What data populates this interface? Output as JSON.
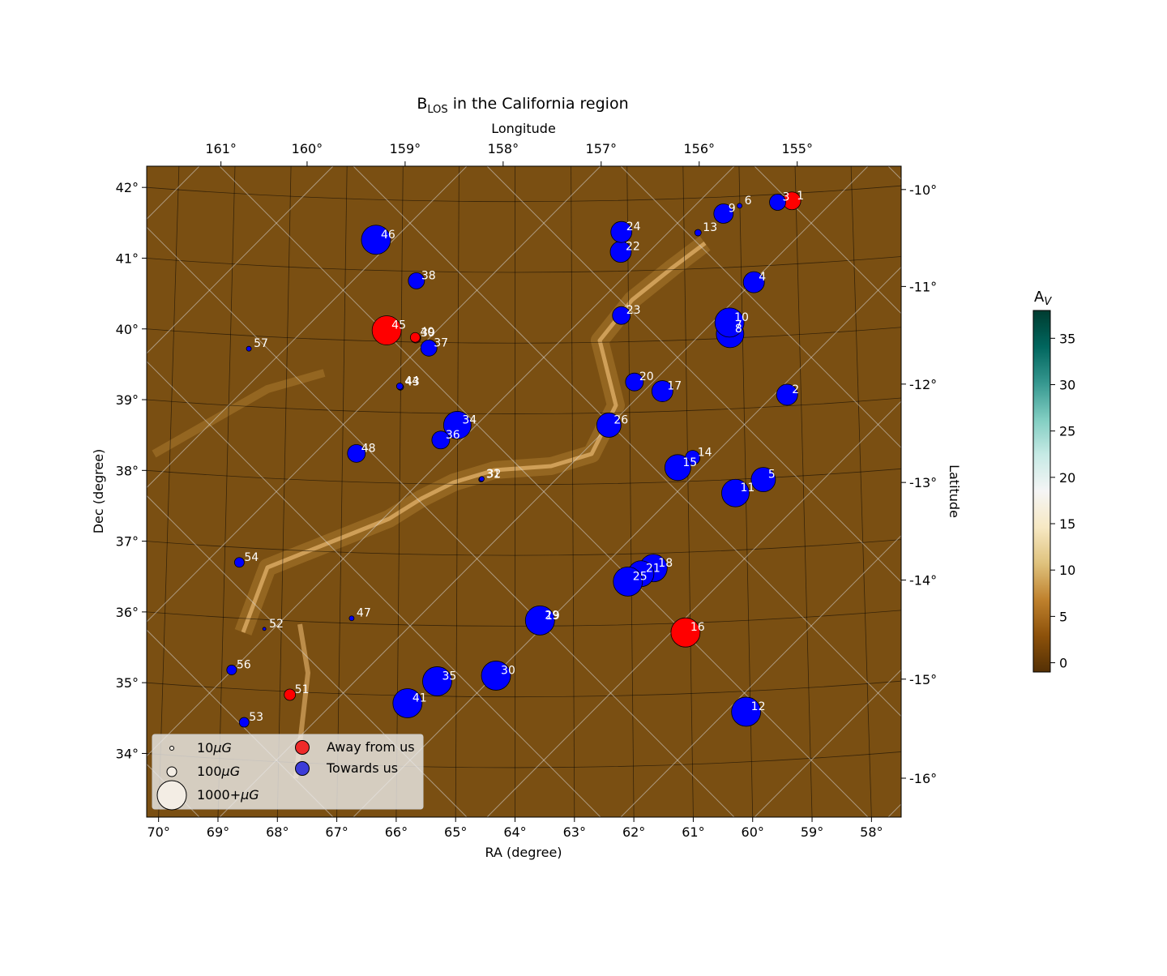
{
  "title": "B",
  "title_sub": "LOS",
  "title_rest": " in the California region",
  "colors": {
    "map_base": "#7a4f12",
    "away": "#ff0000",
    "towards": "#0000ff",
    "colorbar": [
      "#543005",
      "#8c510a",
      "#bf812d",
      "#dfc27d",
      "#f6e8c3",
      "#f5f5f5",
      "#c7eae5",
      "#80cdc1",
      "#35978f",
      "#01665e",
      "#003c30"
    ]
  },
  "chart_data": {
    "type": "scatter",
    "xlabel": "RA (degree)",
    "ylabel": "Dec (degree)",
    "top_axis_label": "Longitude",
    "right_axis_label": "Latitude",
    "xlim": [
      70.2,
      57.5
    ],
    "ylim": [
      33.1,
      42.3
    ],
    "x_ticks": [
      "70°",
      "69°",
      "68°",
      "67°",
      "66°",
      "65°",
      "64°",
      "63°",
      "62°",
      "61°",
      "60°",
      "59°",
      "58°"
    ],
    "x_tick_values": [
      70,
      69,
      68,
      67,
      66,
      65,
      64,
      63,
      62,
      61,
      60,
      59,
      58
    ],
    "y_ticks": [
      "34°",
      "35°",
      "36°",
      "37°",
      "38°",
      "39°",
      "40°",
      "41°",
      "42°"
    ],
    "y_tick_values": [
      34,
      35,
      36,
      37,
      38,
      39,
      40,
      41,
      42
    ],
    "top_ticks": [
      "161°",
      "160°",
      "159°",
      "158°",
      "157°",
      "156°",
      "155°"
    ],
    "top_tick_ra": [
      68.95,
      67.5,
      65.85,
      64.2,
      62.55,
      60.9,
      59.25
    ],
    "right_ticks": [
      "-10°",
      "-11°",
      "-12°",
      "-13°",
      "-14°",
      "-15°",
      "-16°"
    ],
    "right_tick_dec": [
      41.97,
      40.6,
      39.22,
      37.83,
      36.45,
      35.05,
      33.65
    ],
    "colorbar": {
      "label": "A",
      "label_sub": "V",
      "ticks": [
        "0",
        "5",
        "10",
        "15",
        "20",
        "25",
        "30",
        "35"
      ],
      "tick_values": [
        0,
        5,
        10,
        15,
        20,
        25,
        30,
        35
      ],
      "range": [
        -1,
        38
      ]
    },
    "legend": {
      "position": "lower-left",
      "size_entries": [
        {
          "label": "10",
          "unit": "μG"
        },
        {
          "label": "100",
          "unit": "μG"
        },
        {
          "label": "1000+",
          "unit": "μG"
        }
      ],
      "direction_entries": [
        {
          "label": "Away from us",
          "dir": "away"
        },
        {
          "label": "Towards us",
          "dir": "towards"
        }
      ]
    },
    "points": [
      {
        "id": "1",
        "ra": 59.34,
        "dec": 41.81,
        "dir": "away",
        "r": 11
      },
      {
        "id": "2",
        "ra": 59.42,
        "dec": 39.07,
        "dir": "towards",
        "r": 13
      },
      {
        "id": "3",
        "ra": 59.58,
        "dec": 41.79,
        "dir": "towards",
        "r": 10
      },
      {
        "id": "4",
        "ra": 59.98,
        "dec": 40.66,
        "dir": "towards",
        "r": 13
      },
      {
        "id": "5",
        "ra": 59.82,
        "dec": 37.87,
        "dir": "towards",
        "r": 15
      },
      {
        "id": "6",
        "ra": 60.22,
        "dec": 41.74,
        "dir": "towards",
        "r": 3
      },
      {
        "id": "7",
        "ra": 60.38,
        "dec": 39.98,
        "dir": "towards",
        "r": 15
      },
      {
        "id": "8",
        "ra": 60.38,
        "dec": 39.93,
        "dir": "towards",
        "r": 17
      },
      {
        "id": "9",
        "ra": 60.49,
        "dec": 41.63,
        "dir": "towards",
        "r": 12
      },
      {
        "id": "10",
        "ra": 60.39,
        "dec": 40.09,
        "dir": "towards",
        "r": 18
      },
      {
        "id": "11",
        "ra": 60.29,
        "dec": 37.68,
        "dir": "towards",
        "r": 17
      },
      {
        "id": "12",
        "ra": 60.11,
        "dec": 34.59,
        "dir": "towards",
        "r": 18
      },
      {
        "id": "13",
        "ra": 60.92,
        "dec": 41.36,
        "dir": "towards",
        "r": 4
      },
      {
        "id": "14",
        "ra": 61.01,
        "dec": 38.18,
        "dir": "towards",
        "r": 9
      },
      {
        "id": "15",
        "ra": 61.26,
        "dec": 38.04,
        "dir": "towards",
        "r": 16
      },
      {
        "id": "16",
        "ra": 61.13,
        "dec": 35.71,
        "dir": "away",
        "r": 18
      },
      {
        "id": "17",
        "ra": 61.52,
        "dec": 39.12,
        "dir": "towards",
        "r": 13
      },
      {
        "id": "18",
        "ra": 61.67,
        "dec": 36.62,
        "dir": "towards",
        "r": 17
      },
      {
        "id": "19",
        "ra": 63.57,
        "dec": 35.87,
        "dir": "towards",
        "r": 15
      },
      {
        "id": "20",
        "ra": 61.99,
        "dec": 39.25,
        "dir": "towards",
        "r": 11
      },
      {
        "id": "21",
        "ra": 61.88,
        "dec": 36.54,
        "dir": "towards",
        "r": 16
      },
      {
        "id": "22",
        "ra": 62.22,
        "dec": 41.09,
        "dir": "towards",
        "r": 13
      },
      {
        "id": "23",
        "ra": 62.21,
        "dec": 40.19,
        "dir": "towards",
        "r": 11
      },
      {
        "id": "24",
        "ra": 62.21,
        "dec": 41.37,
        "dir": "towards",
        "r": 13
      },
      {
        "id": "25",
        "ra": 62.1,
        "dec": 36.43,
        "dir": "towards",
        "r": 18
      },
      {
        "id": "26",
        "ra": 62.42,
        "dec": 38.64,
        "dir": "towards",
        "r": 15
      },
      {
        "id": "29",
        "ra": 63.58,
        "dec": 35.88,
        "dir": "towards",
        "r": 18
      },
      {
        "id": "30",
        "ra": 64.32,
        "dec": 35.1,
        "dir": "towards",
        "r": 18
      },
      {
        "id": "31",
        "ra": 64.57,
        "dec": 37.87,
        "dir": "towards",
        "r": 3
      },
      {
        "id": "32",
        "ra": 64.56,
        "dec": 37.88,
        "dir": "towards",
        "r": 3
      },
      {
        "id": "34",
        "ra": 64.97,
        "dec": 38.64,
        "dir": "towards",
        "r": 17
      },
      {
        "id": "35",
        "ra": 65.31,
        "dec": 35.02,
        "dir": "towards",
        "r": 18
      },
      {
        "id": "36",
        "ra": 65.25,
        "dec": 38.43,
        "dir": "towards",
        "r": 11
      },
      {
        "id": "37",
        "ra": 65.45,
        "dec": 39.73,
        "dir": "towards",
        "r": 10
      },
      {
        "id": "38",
        "ra": 65.66,
        "dec": 40.68,
        "dir": "towards",
        "r": 10
      },
      {
        "id": "39",
        "ra": 65.67,
        "dec": 39.87,
        "dir": "away",
        "r": 6
      },
      {
        "id": "40",
        "ra": 65.68,
        "dec": 39.88,
        "dir": "away",
        "r": 6
      },
      {
        "id": "41",
        "ra": 65.81,
        "dec": 34.71,
        "dir": "towards",
        "r": 18
      },
      {
        "id": "43",
        "ra": 65.93,
        "dec": 39.18,
        "dir": "towards",
        "r": 4
      },
      {
        "id": "44",
        "ra": 65.94,
        "dec": 39.19,
        "dir": "towards",
        "r": 4
      },
      {
        "id": "45",
        "ra": 66.16,
        "dec": 39.98,
        "dir": "away",
        "r": 18
      },
      {
        "id": "46",
        "ra": 66.34,
        "dec": 41.26,
        "dir": "towards",
        "r": 18
      },
      {
        "id": "47",
        "ra": 66.75,
        "dec": 35.91,
        "dir": "towards",
        "r": 3
      },
      {
        "id": "48",
        "ra": 66.67,
        "dec": 38.24,
        "dir": "towards",
        "r": 11
      },
      {
        "id": "51",
        "ra": 67.79,
        "dec": 34.83,
        "dir": "away",
        "r": 7
      },
      {
        "id": "52",
        "ra": 68.22,
        "dec": 35.76,
        "dir": "towards",
        "r": 2
      },
      {
        "id": "53",
        "ra": 68.56,
        "dec": 34.44,
        "dir": "towards",
        "r": 6
      },
      {
        "id": "54",
        "ra": 68.64,
        "dec": 36.7,
        "dir": "towards",
        "r": 6
      },
      {
        "id": "56",
        "ra": 68.77,
        "dec": 35.18,
        "dir": "towards",
        "r": 6
      },
      {
        "id": "57",
        "ra": 68.48,
        "dec": 39.72,
        "dir": "towards",
        "r": 3
      }
    ]
  }
}
